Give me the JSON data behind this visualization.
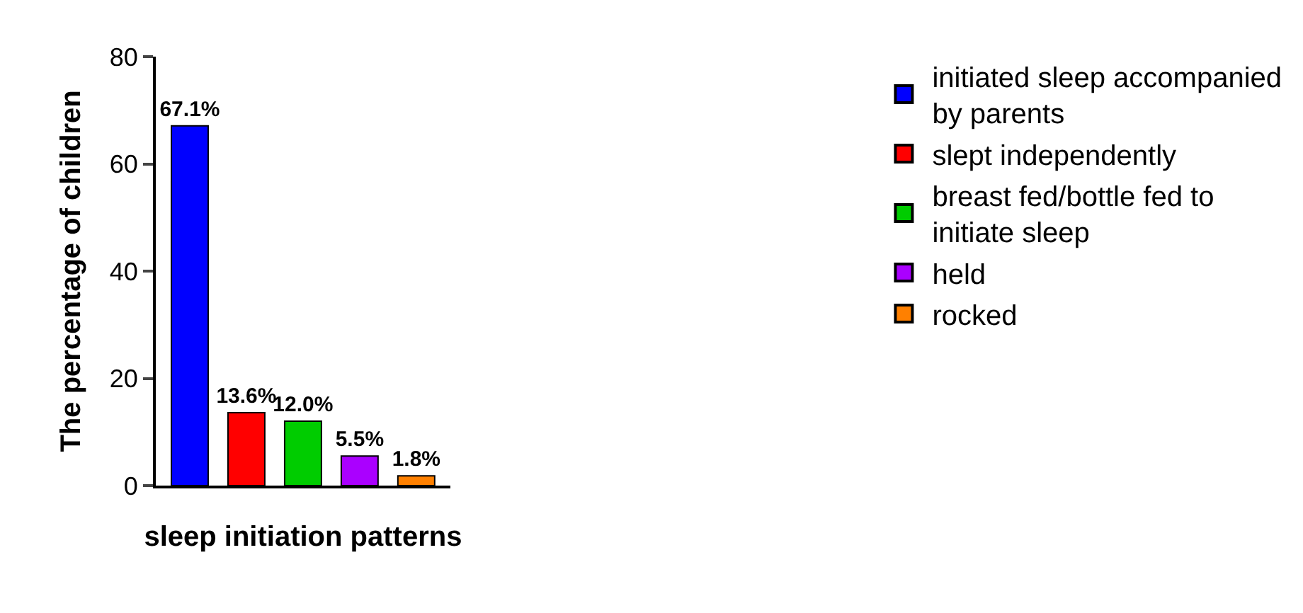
{
  "chart_data": {
    "type": "bar",
    "xlabel": "sleep initiation patterns",
    "ylabel": "The percentage of children",
    "categories": [
      null,
      null,
      null,
      null,
      null
    ],
    "series": [
      {
        "name": "initiated sleep accompanied by parents",
        "color": "#0000ff",
        "values": [
          67.1,
          null,
          null,
          null,
          null
        ],
        "value_labels": [
          "67.1%",
          null,
          null,
          null,
          null
        ]
      },
      {
        "name": "slept independently",
        "color": "#ff0000",
        "values": [
          null,
          13.6,
          null,
          null,
          null
        ],
        "value_labels": [
          null,
          "13.6%",
          null,
          null,
          null
        ]
      },
      {
        "name": "breast fed/bottle fed to initiate sleep",
        "color": "#00cc00",
        "values": [
          null,
          null,
          12.0,
          null,
          null
        ],
        "value_labels": [
          null,
          null,
          "12.0%",
          null,
          null
        ]
      },
      {
        "name": "held",
        "color": "#aa00ff",
        "values": [
          null,
          null,
          null,
          5.5,
          null
        ],
        "value_labels": [
          null,
          null,
          null,
          "5.5%",
          null
        ]
      },
      {
        "name": "rocked",
        "color": "#ff8000",
        "values": [
          null,
          null,
          null,
          null,
          1.8
        ],
        "value_labels": [
          null,
          null,
          null,
          null,
          "1.8%"
        ]
      }
    ],
    "ylim": [
      0,
      80
    ],
    "yticks": [
      0,
      20,
      40,
      60,
      80
    ],
    "legend": "right"
  }
}
